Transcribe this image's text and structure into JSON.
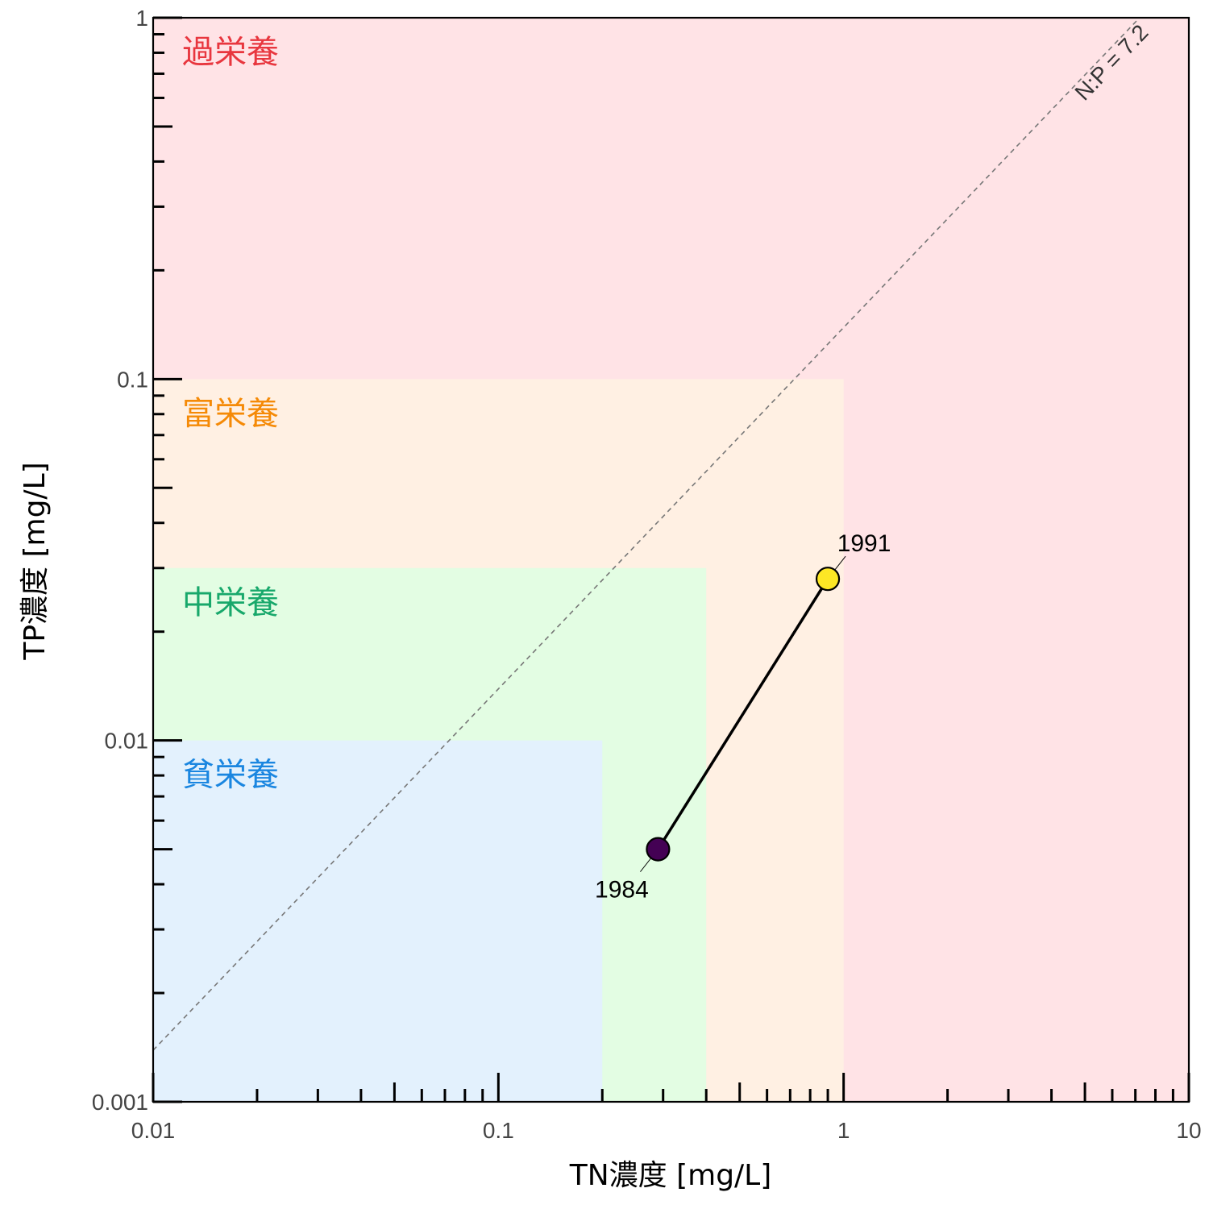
{
  "chart_data": {
    "type": "scatter",
    "xlabel": "TN濃度 [mg/L]",
    "ylabel": "TP濃度 [mg/L]",
    "x_scale": "log",
    "y_scale": "log",
    "xlim": [
      0.01,
      10
    ],
    "ylim": [
      0.001,
      1
    ],
    "x_ticks": [
      {
        "value": 0.01,
        "label": "0.01"
      },
      {
        "value": 0.1,
        "label": "0.1"
      },
      {
        "value": 1,
        "label": "1"
      },
      {
        "value": 10,
        "label": "10"
      }
    ],
    "y_ticks": [
      {
        "value": 0.001,
        "label": "0.001"
      },
      {
        "value": 0.01,
        "label": "0.01"
      },
      {
        "value": 0.1,
        "label": "0.1"
      },
      {
        "value": 1,
        "label": "1"
      }
    ],
    "grid": false,
    "zones": [
      {
        "name": "過栄養",
        "tn_max": 10,
        "tp_max": 1,
        "fill": "#ffe3e6",
        "text_color": "#e8363e"
      },
      {
        "name": "富栄養",
        "tn_max": 1,
        "tp_max": 0.1,
        "fill": "#fff0e3",
        "text_color": "#f58a07"
      },
      {
        "name": "中栄養",
        "tn_max": 0.4,
        "tp_max": 0.03,
        "fill": "#e3fde3",
        "text_color": "#18a86b"
      },
      {
        "name": "貧栄養",
        "tn_max": 0.2,
        "tp_max": 0.01,
        "fill": "#e3f1fd",
        "text_color": "#1a86e0"
      }
    ],
    "series": [
      {
        "points": [
          {
            "label": "1984",
            "x": 0.29,
            "y": 0.005,
            "color": "#440154"
          },
          {
            "label": "1991",
            "x": 0.9,
            "y": 0.028,
            "color": "#fde725"
          }
        ]
      }
    ],
    "reference_line": {
      "label": "N:P = 7.2",
      "ratio": 7.2,
      "color": "#777777"
    }
  }
}
